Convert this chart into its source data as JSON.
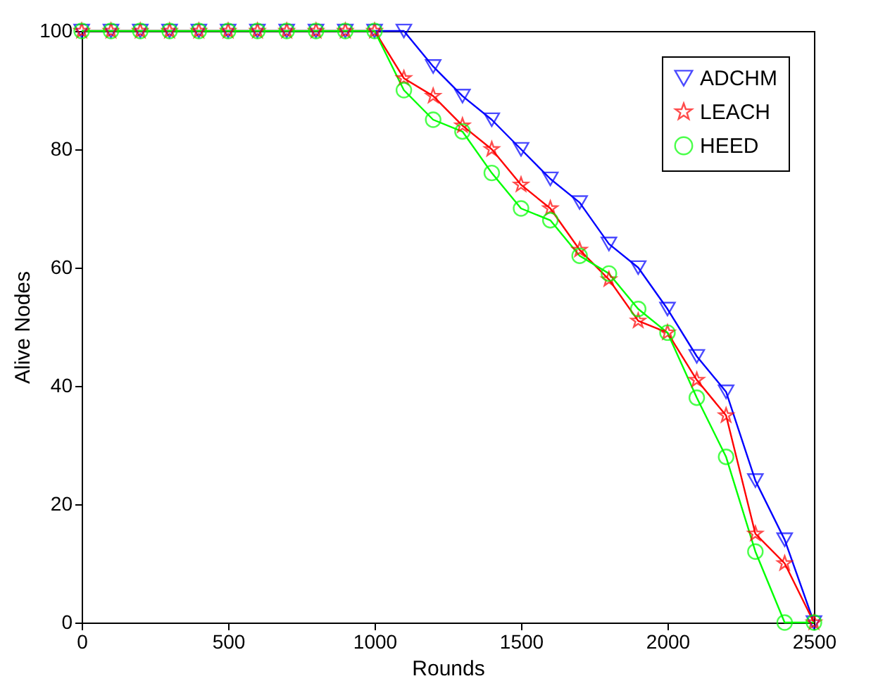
{
  "chart_data": {
    "type": "line",
    "xlabel": "Rounds",
    "ylabel": "Alive Nodes",
    "x": [
      0,
      100,
      200,
      300,
      400,
      500,
      600,
      700,
      800,
      900,
      1000,
      1100,
      1200,
      1300,
      1400,
      1500,
      1600,
      1700,
      1800,
      1900,
      2000,
      2100,
      2200,
      2300,
      2400,
      2500
    ],
    "series": [
      {
        "name": "ADCHM",
        "color": "#0000ff",
        "marker": "triangle",
        "values": [
          100,
          100,
          100,
          100,
          100,
          100,
          100,
          100,
          100,
          100,
          100,
          100,
          94,
          89,
          85,
          80,
          75,
          71,
          64,
          60,
          53,
          45,
          39,
          24,
          14,
          0
        ]
      },
      {
        "name": "LEACH",
        "color": "#ff0000",
        "marker": "star",
        "values": [
          100,
          100,
          100,
          100,
          100,
          100,
          100,
          100,
          100,
          100,
          100,
          92,
          89,
          84,
          80,
          74,
          70,
          63,
          58,
          51,
          49,
          41,
          35,
          15,
          10,
          0
        ]
      },
      {
        "name": "HEED",
        "color": "#00ff00",
        "marker": "circle",
        "values": [
          100,
          100,
          100,
          100,
          100,
          100,
          100,
          100,
          100,
          100,
          100,
          90,
          85,
          83,
          76,
          70,
          68,
          62,
          59,
          53,
          49,
          38,
          28,
          12,
          0,
          0
        ]
      }
    ],
    "xlim": [
      0,
      2500
    ],
    "xticks": [
      0,
      500,
      1000,
      1500,
      2000,
      2500
    ],
    "ylim": [
      0,
      100
    ],
    "yticks": [
      0,
      20,
      40,
      60,
      80,
      100
    ],
    "grid": false,
    "legend": "top right"
  }
}
